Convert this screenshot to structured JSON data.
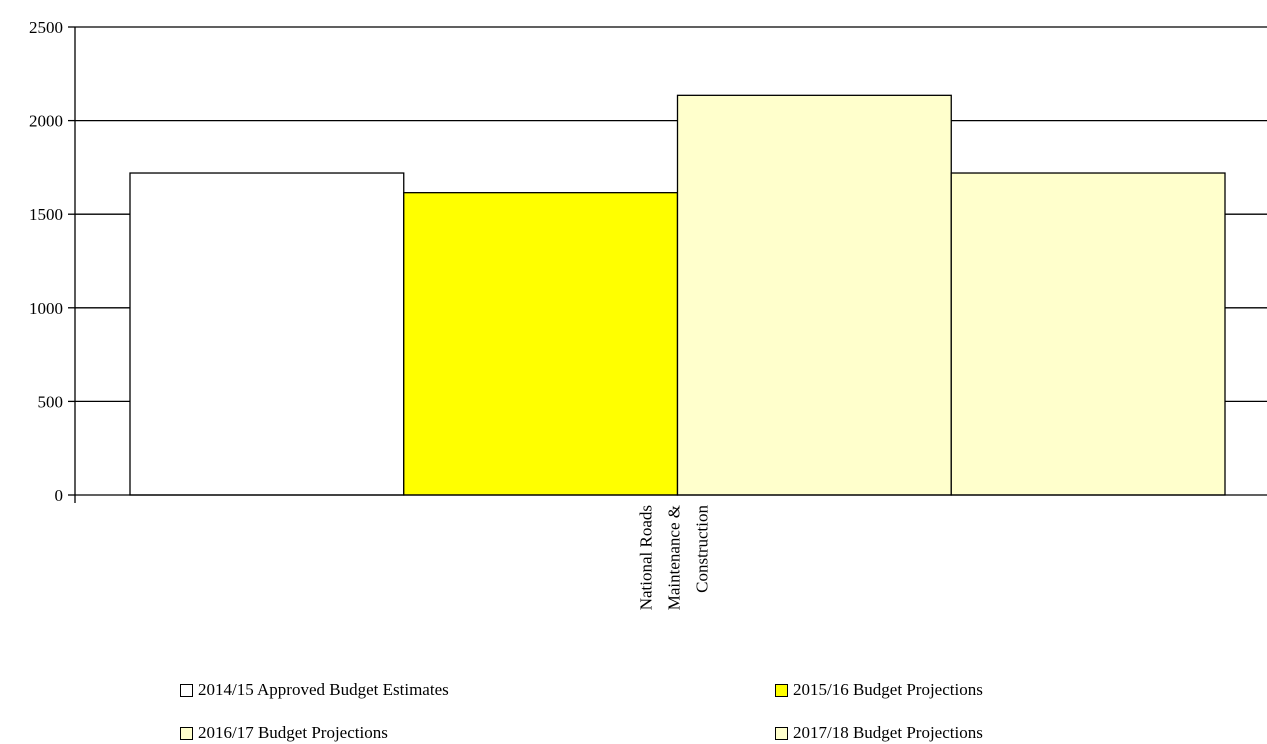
{
  "chart_data": {
    "type": "bar",
    "categories": [
      "National Roads Maintenance & Construction"
    ],
    "category_label_lines": [
      "National Roads",
      "Maintenance &",
      "Construction"
    ],
    "series": [
      {
        "name": "2014/15 Approved Budget Estimates",
        "values": [
          1720
        ],
        "color": "#ffffff"
      },
      {
        "name": "2015/16 Budget Projections",
        "values": [
          1615
        ],
        "color": "#ffff00"
      },
      {
        "name": "2016/17 Budget Projections",
        "values": [
          2135
        ],
        "color": "#ffffcc"
      },
      {
        "name": "2017/18 Budget Projections",
        "values": [
          1720
        ],
        "color": "#ffffcc"
      }
    ],
    "ylim": [
      0,
      2500
    ],
    "yticks": [
      0,
      500,
      1000,
      1500,
      2000,
      2500
    ],
    "grid": true,
    "legend_position": "bottom",
    "title": "",
    "xlabel": "",
    "ylabel": ""
  }
}
